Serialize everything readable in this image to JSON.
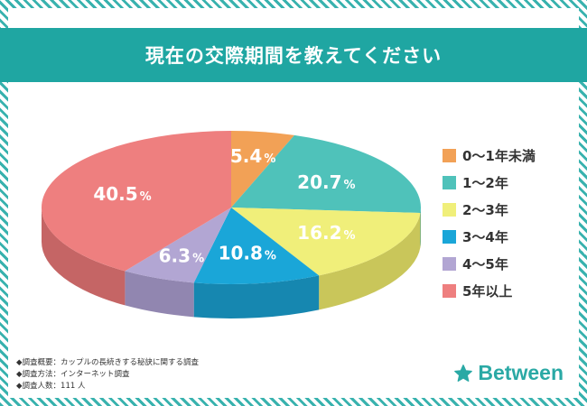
{
  "title": "現在の交際期間を教えてください",
  "chart_data": {
    "type": "pie",
    "title": "現在の交際期間を教えてください",
    "labels": [
      "0〜1年未満",
      "1〜2年",
      "2〜3年",
      "3〜4年",
      "4〜5年",
      "5年以上"
    ],
    "values": [
      5.4,
      20.7,
      16.2,
      10.8,
      6.3,
      40.5
    ],
    "value_labels": [
      "5.4",
      "20.7",
      "16.2",
      "10.8",
      "6.3",
      "40.5"
    ],
    "unit": "%",
    "colors": [
      "#f2a156",
      "#4fc2ba",
      "#f0ef7a",
      "#1aa6d8",
      "#b2a6d3",
      "#ee7f7f"
    ],
    "side_colors": [
      "#c98340",
      "#3a9e98",
      "#c9c65a",
      "#1687b0",
      "#9186b0",
      "#c56565"
    ],
    "legend_position": "right",
    "three_d": true
  },
  "notes": [
    "◆調査概要：カップルの長続きする秘訣に関する調査",
    "◆調査方法：インターネット調査",
    "◆調査人数：111 人"
  ],
  "brand": {
    "name": "Between",
    "icon": "star-icon",
    "color": "#2aa9a5"
  }
}
